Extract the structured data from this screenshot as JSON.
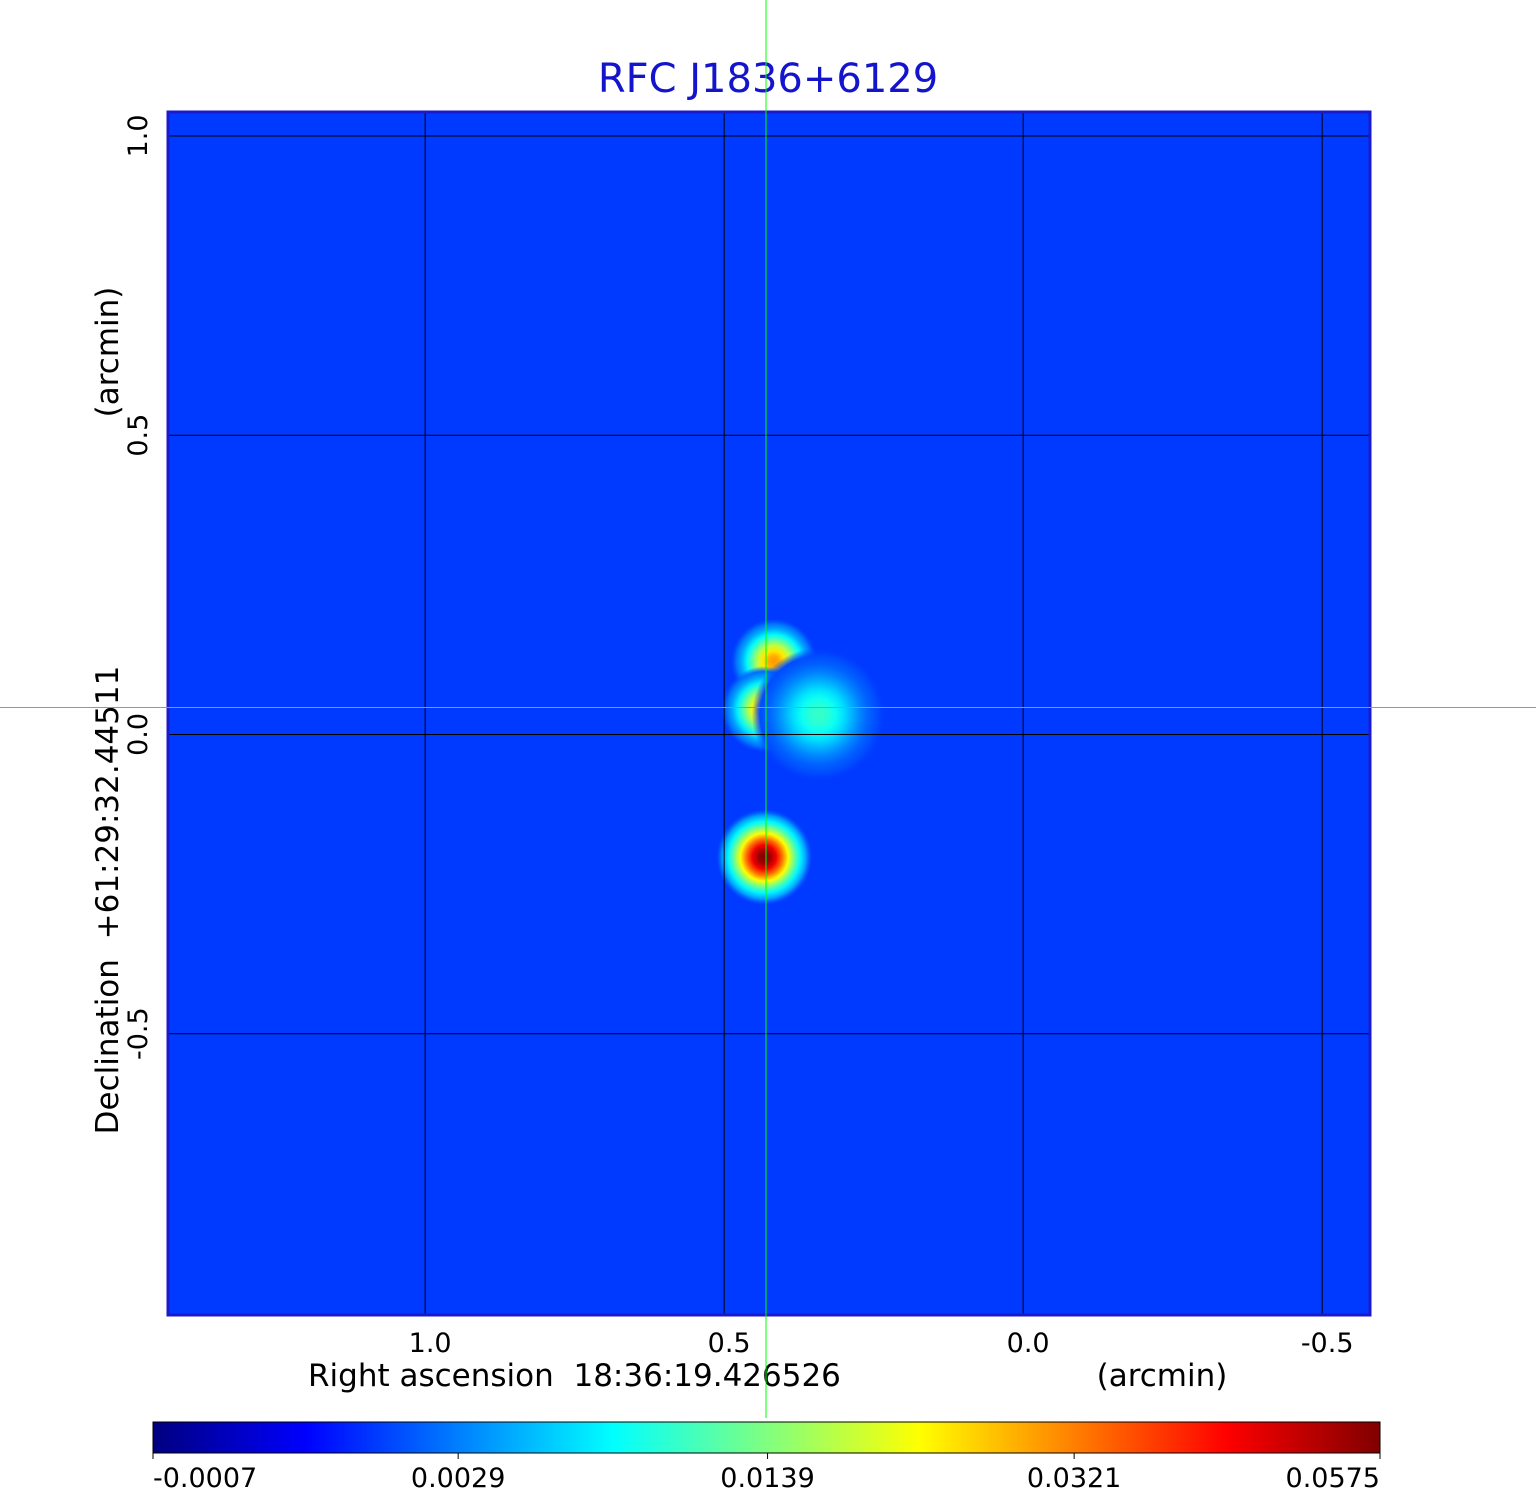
{
  "chart_data": {
    "type": "heatmap",
    "title": "RFC J1836+6129",
    "x_label": "Right ascension  18:36:19.426526",
    "x_unit": "(arcmin)",
    "y_label": "Declination  +61:29:32.44511",
    "y_unit": "(arcmin)",
    "xlim": [
      1.43,
      -0.58
    ],
    "ylim": [
      -0.97,
      1.04
    ],
    "xticks": [
      {
        "value": 1.0,
        "label": "1.0"
      },
      0.5,
      {
        "value": 0.0,
        "label": "0.0"
      },
      -0.5
    ],
    "yticks": [
      -0.5,
      {
        "value": 0.0,
        "label": "0.0"
      },
      0.5,
      {
        "value": 1.0,
        "label": "1.0"
      }
    ],
    "grid": true,
    "colormap": "jet",
    "color_scale": "sqrt",
    "clim": [
      -0.0007,
      0.0575
    ],
    "colorbar_ticks": [
      -0.0007,
      0.0029,
      0.0139,
      0.0321,
      0.0575
    ],
    "background_level": 0.0012,
    "sources": [
      {
        "x": 0.417,
        "y": 0.122,
        "peak": 0.03,
        "size": 0.045
      },
      {
        "x": 0.433,
        "y": 0.042,
        "peak": 0.028,
        "size": 0.045
      },
      {
        "x": 0.342,
        "y": 0.033,
        "peak": 0.01,
        "size": 0.07
      },
      {
        "x": 0.433,
        "y": -0.205,
        "peak": 0.0575,
        "size": 0.05
      }
    ],
    "crosshair": {
      "x": 0.43,
      "y": 0.045,
      "color": "#00ff00"
    }
  }
}
